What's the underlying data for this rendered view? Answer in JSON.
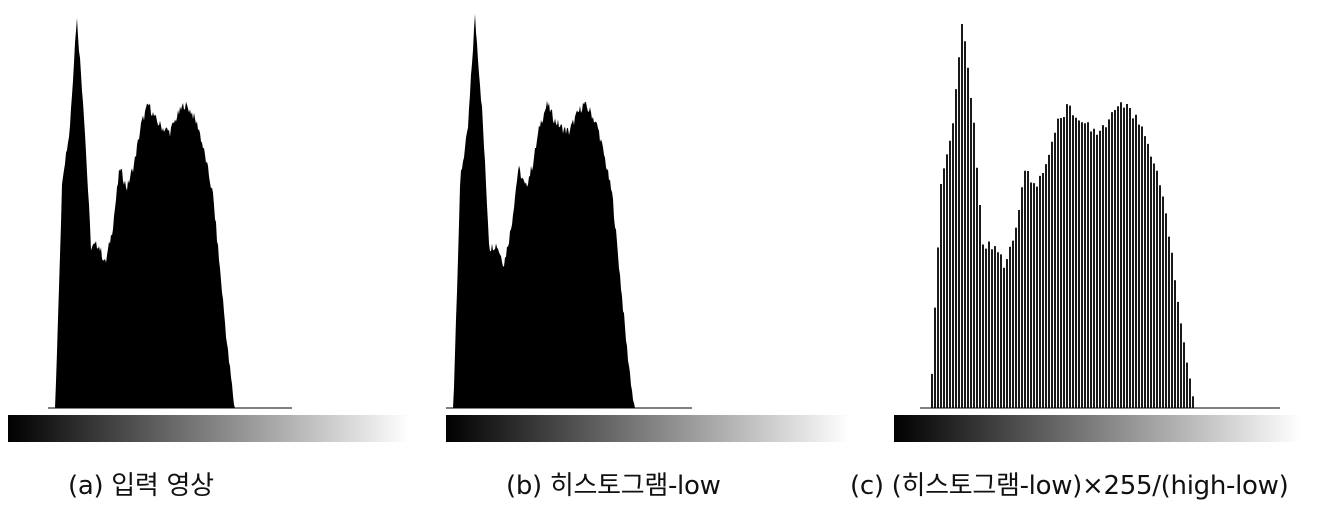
{
  "chart_data": [
    {
      "type": "bar",
      "caption": "(a) 입력 영상",
      "x_range": [
        0,
        255
      ],
      "nonzero_range": [
        0,
        255
      ],
      "style": "filled",
      "profile_fraction_of_range": [
        0.0,
        0.0,
        0.58,
        0.69,
        0.98,
        0.74,
        0.4,
        0.41,
        0.36,
        0.45,
        0.6,
        0.55,
        0.61,
        0.71,
        0.76,
        0.72,
        0.7,
        0.69,
        0.73,
        0.76,
        0.74,
        0.7,
        0.62,
        0.53,
        0.34,
        0.15,
        0.0,
        0.0,
        0.0,
        0.0,
        0.0,
        0.0,
        0.0,
        0.0,
        0.0
      ],
      "series": [
        {
          "values": [
            0,
            0,
            0,
            0,
            0,
            0,
            0,
            0,
            0,
            0,
            0,
            0,
            0,
            0,
            0,
            0,
            0,
            0,
            0,
            0,
            0,
            0,
            0,
            0,
            0,
            0,
            0,
            0,
            0,
            0,
            0,
            0,
            0,
            0,
            0,
            0,
            0,
            0,
            0,
            0
          ]
        }
      ]
    },
    {
      "type": "bar",
      "caption": "(b) 히스토그램-low",
      "x_range": [
        0,
        255
      ],
      "style": "filled"
    },
    {
      "type": "bar",
      "caption": "(c) (히스토그램-low)×255/(high-low)",
      "x_range": [
        0,
        255
      ],
      "style": "spiked"
    }
  ]
}
